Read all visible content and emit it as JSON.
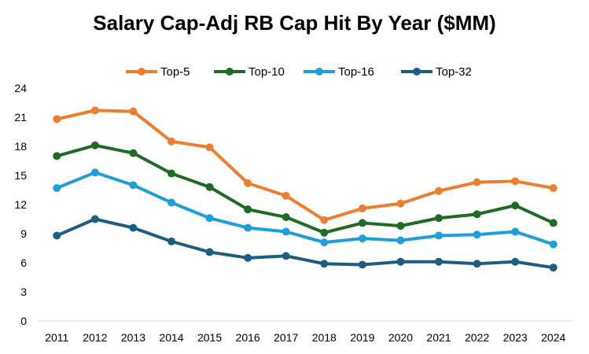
{
  "chart_data": {
    "type": "line",
    "title": "Salary Cap-Adj RB Cap Hit By Year ($MM)",
    "xlabel": "",
    "ylabel": "",
    "ylim": [
      0,
      24
    ],
    "yticks": [
      0,
      3,
      6,
      9,
      12,
      15,
      18,
      21,
      24
    ],
    "grid": false,
    "legend_position": "top",
    "categories": [
      "2011",
      "2012",
      "2013",
      "2014",
      "2015",
      "2016",
      "2017",
      "2018",
      "2019",
      "2020",
      "2021",
      "2022",
      "2023",
      "2024"
    ],
    "series": [
      {
        "name": "Top-5",
        "color": "#ED7D31",
        "values": [
          20.8,
          21.7,
          21.6,
          18.5,
          17.9,
          14.2,
          12.9,
          10.4,
          11.6,
          12.1,
          13.4,
          14.3,
          14.4,
          13.7
        ]
      },
      {
        "name": "Top-10",
        "color": "#1F6B24",
        "values": [
          17.0,
          18.1,
          17.3,
          15.2,
          13.8,
          11.5,
          10.7,
          9.1,
          10.1,
          9.8,
          10.6,
          11.0,
          11.9,
          10.1
        ]
      },
      {
        "name": "Top-16",
        "color": "#1F9FD9",
        "values": [
          13.7,
          15.3,
          14.0,
          12.2,
          10.6,
          9.6,
          9.2,
          8.1,
          8.5,
          8.3,
          8.8,
          8.9,
          9.2,
          7.9
        ]
      },
      {
        "name": "Top-32",
        "color": "#1D5D80",
        "values": [
          8.8,
          10.5,
          9.6,
          8.2,
          7.1,
          6.5,
          6.7,
          5.9,
          5.8,
          6.1,
          6.1,
          5.9,
          6.1,
          5.5
        ]
      }
    ]
  }
}
